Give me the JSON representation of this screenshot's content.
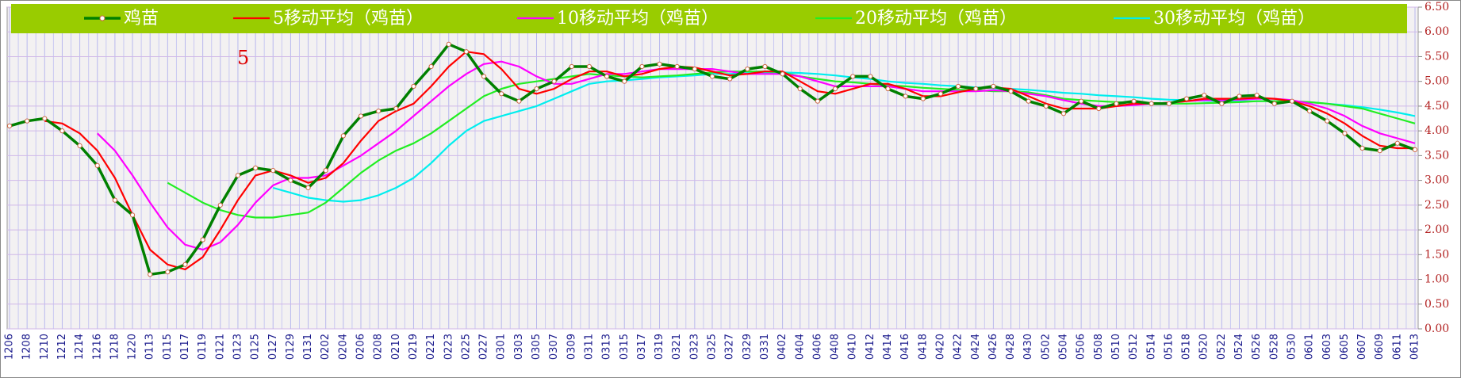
{
  "chart_data": {
    "type": "line",
    "annotations": [
      "5"
    ],
    "categories": [
      "1206",
      "1208",
      "1210",
      "1212",
      "1214",
      "1216",
      "1218",
      "1220",
      "0113",
      "0115",
      "0117",
      "0119",
      "0121",
      "0123",
      "0125",
      "0127",
      "0129",
      "0131",
      "0202",
      "0204",
      "0206",
      "0208",
      "0210",
      "0219",
      "0221",
      "0223",
      "0225",
      "0227",
      "0301",
      "0303",
      "0305",
      "0307",
      "0309",
      "0311",
      "0313",
      "0315",
      "0317",
      "0319",
      "0321",
      "0323",
      "0325",
      "0327",
      "0329",
      "0331",
      "0402",
      "0404",
      "0406",
      "0408",
      "0410",
      "0412",
      "0414",
      "0416",
      "0418",
      "0420",
      "0422",
      "0424",
      "0426",
      "0428",
      "0430",
      "0502",
      "0504",
      "0506",
      "0508",
      "0510",
      "0512",
      "0514",
      "0516",
      "0518",
      "0520",
      "0522",
      "0524",
      "0526",
      "0528",
      "0530",
      "0601",
      "0603",
      "0605",
      "0607",
      "0609",
      "0611",
      "0613"
    ],
    "series": [
      {
        "name": "鸡苗",
        "color": "#008000",
        "values": [
          4.1,
          4.2,
          4.25,
          4.0,
          3.7,
          3.3,
          2.6,
          2.3,
          1.1,
          1.15,
          1.3,
          1.8,
          2.5,
          3.1,
          3.25,
          3.2,
          3.0,
          2.85,
          3.2,
          3.9,
          4.3,
          4.4,
          4.45,
          4.9,
          5.3,
          5.75,
          5.6,
          5.1,
          4.75,
          4.6,
          4.85,
          5.0,
          5.3,
          5.3,
          5.1,
          5.0,
          5.3,
          5.35,
          5.3,
          5.25,
          5.1,
          5.05,
          5.25,
          5.3,
          5.15,
          4.85,
          4.6,
          4.85,
          5.1,
          5.1,
          4.85,
          4.7,
          4.65,
          4.75,
          4.9,
          4.85,
          4.9,
          4.8,
          4.6,
          4.5,
          4.35,
          4.6,
          4.45,
          4.55,
          4.6,
          4.55,
          4.55,
          4.65,
          4.72,
          4.55,
          4.7,
          4.72,
          4.55,
          4.6,
          4.4,
          4.2,
          3.95,
          3.65,
          3.6,
          3.75,
          3.62
        ]
      },
      {
        "name": "5移动平均（鸡苗）",
        "color": "#ff0000",
        "values": [
          null,
          null,
          4.2,
          4.15,
          3.95,
          3.6,
          3.05,
          2.3,
          1.6,
          1.3,
          1.2,
          1.45,
          2.0,
          2.6,
          3.1,
          3.2,
          3.1,
          2.95,
          3.05,
          3.35,
          3.8,
          4.2,
          4.4,
          4.55,
          4.9,
          5.3,
          5.6,
          5.55,
          5.25,
          4.85,
          4.75,
          4.85,
          5.05,
          5.2,
          5.2,
          5.1,
          5.15,
          5.25,
          5.3,
          5.28,
          5.2,
          5.12,
          5.15,
          5.2,
          5.2,
          5.0,
          4.8,
          4.75,
          4.85,
          4.95,
          4.95,
          4.85,
          4.7,
          4.7,
          4.78,
          4.85,
          4.88,
          4.85,
          4.7,
          4.55,
          4.45,
          4.45,
          4.45,
          4.5,
          4.55,
          4.55,
          4.57,
          4.6,
          4.65,
          4.65,
          4.65,
          4.67,
          4.65,
          4.6,
          4.5,
          4.35,
          4.15,
          3.9,
          3.7,
          3.65,
          3.65
        ]
      },
      {
        "name": "10移动平均（鸡苗）",
        "color": "#ff00ff",
        "values": [
          null,
          null,
          null,
          null,
          null,
          3.95,
          3.6,
          3.1,
          2.55,
          2.05,
          1.7,
          1.6,
          1.75,
          2.1,
          2.55,
          2.9,
          3.05,
          3.05,
          3.1,
          3.3,
          3.5,
          3.75,
          4.0,
          4.3,
          4.6,
          4.9,
          5.15,
          5.35,
          5.4,
          5.3,
          5.1,
          4.95,
          4.95,
          5.05,
          5.15,
          5.15,
          5.2,
          5.25,
          5.25,
          5.25,
          5.25,
          5.2,
          5.15,
          5.15,
          5.15,
          5.1,
          5.0,
          4.9,
          4.9,
          4.9,
          4.9,
          4.85,
          4.8,
          4.8,
          4.8,
          4.8,
          4.82,
          4.8,
          4.75,
          4.7,
          4.62,
          4.55,
          4.5,
          4.5,
          4.52,
          4.55,
          4.57,
          4.6,
          4.62,
          4.62,
          4.63,
          4.65,
          4.65,
          4.62,
          4.55,
          4.45,
          4.3,
          4.1,
          3.95,
          3.85,
          3.75
        ]
      },
      {
        "name": "20移动平均（鸡苗）",
        "color": "#22ee22",
        "values": [
          null,
          null,
          null,
          null,
          null,
          null,
          null,
          null,
          null,
          2.95,
          2.75,
          2.55,
          2.4,
          2.3,
          2.25,
          2.25,
          2.3,
          2.35,
          2.55,
          2.85,
          3.15,
          3.4,
          3.6,
          3.75,
          3.95,
          4.2,
          4.45,
          4.7,
          4.85,
          4.95,
          5.0,
          5.05,
          5.1,
          5.15,
          5.12,
          5.1,
          5.08,
          5.1,
          5.12,
          5.15,
          5.18,
          5.2,
          5.2,
          5.2,
          5.18,
          5.1,
          5.05,
          5.0,
          4.98,
          4.95,
          4.92,
          4.9,
          4.87,
          4.85,
          4.83,
          4.82,
          4.8,
          4.8,
          4.78,
          4.72,
          4.65,
          4.62,
          4.6,
          4.58,
          4.57,
          4.55,
          4.55,
          4.55,
          4.56,
          4.57,
          4.58,
          4.6,
          4.6,
          4.6,
          4.58,
          4.55,
          4.5,
          4.45,
          4.35,
          4.25,
          4.15
        ]
      },
      {
        "name": "30移动平均（鸡苗）",
        "color": "#00eeee",
        "values": [
          null,
          null,
          null,
          null,
          null,
          null,
          null,
          null,
          null,
          null,
          null,
          null,
          null,
          null,
          null,
          2.85,
          2.75,
          2.65,
          2.6,
          2.57,
          2.6,
          2.7,
          2.85,
          3.05,
          3.35,
          3.7,
          4.0,
          4.2,
          4.3,
          4.4,
          4.5,
          4.65,
          4.8,
          4.95,
          5.0,
          5.02,
          5.05,
          5.08,
          5.1,
          5.12,
          5.15,
          5.15,
          5.17,
          5.18,
          5.18,
          5.17,
          5.15,
          5.12,
          5.08,
          5.05,
          5.0,
          4.97,
          4.95,
          4.92,
          4.9,
          4.88,
          4.86,
          4.85,
          4.83,
          4.8,
          4.77,
          4.75,
          4.72,
          4.7,
          4.68,
          4.65,
          4.63,
          4.62,
          4.61,
          4.6,
          4.6,
          4.6,
          4.6,
          4.6,
          4.58,
          4.55,
          4.52,
          4.48,
          4.43,
          4.37,
          4.3
        ]
      }
    ],
    "ylim": [
      0,
      6.5
    ],
    "yticks": [
      {
        "value": 0,
        "label": "0.00"
      },
      {
        "value": 0.5,
        "label": "0.50"
      },
      {
        "value": 1,
        "label": "1.00"
      },
      {
        "value": 1.5,
        "label": "1.50"
      },
      {
        "value": 2,
        "label": "2.00"
      },
      {
        "value": 2.5,
        "label": "2.50"
      },
      {
        "value": 3,
        "label": "3.00"
      },
      {
        "value": 3.5,
        "label": "3.50"
      },
      {
        "value": 4,
        "label": "4.00"
      },
      {
        "value": 4.5,
        "label": "4.50"
      },
      {
        "value": 5,
        "label": "5.00"
      },
      {
        "value": 5.5,
        "label": "5.50"
      },
      {
        "value": 6,
        "label": "6.00"
      },
      {
        "value": 6.5,
        "label": "6.50"
      }
    ],
    "grid": true,
    "legend_position": "top"
  }
}
